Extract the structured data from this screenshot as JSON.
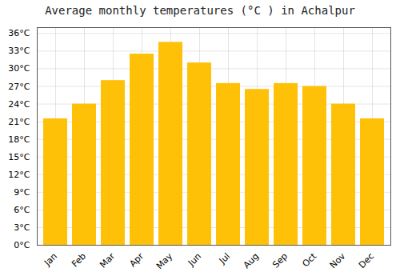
{
  "chart_data": {
    "type": "bar",
    "title": "Average monthly temperatures (°C ) in Achalpur",
    "categories": [
      "Jan",
      "Feb",
      "Mar",
      "Apr",
      "May",
      "Jun",
      "Jul",
      "Aug",
      "Sep",
      "Oct",
      "Nov",
      "Dec"
    ],
    "values": [
      21.5,
      24.0,
      28.0,
      32.5,
      34.5,
      31.0,
      27.5,
      26.5,
      27.5,
      27.0,
      24.0,
      21.5
    ],
    "color": "#FFC107",
    "ylim": [
      0,
      37
    ],
    "yticks": [
      {
        "value": 0,
        "label": "0°C"
      },
      {
        "value": 3,
        "label": "3°C"
      },
      {
        "value": 6,
        "label": "6°C"
      },
      {
        "value": 9,
        "label": "9°C"
      },
      {
        "value": 12,
        "label": "12°C"
      },
      {
        "value": 15,
        "label": "15°C"
      },
      {
        "value": 18,
        "label": "18°C"
      },
      {
        "value": 21,
        "label": "21°C"
      },
      {
        "value": 24,
        "label": "24°C"
      },
      {
        "value": 27,
        "label": "27°C"
      },
      {
        "value": 30,
        "label": "30°C"
      },
      {
        "value": 33,
        "label": "33°C"
      },
      {
        "value": 36,
        "label": "36°C"
      }
    ],
    "grid": true
  }
}
